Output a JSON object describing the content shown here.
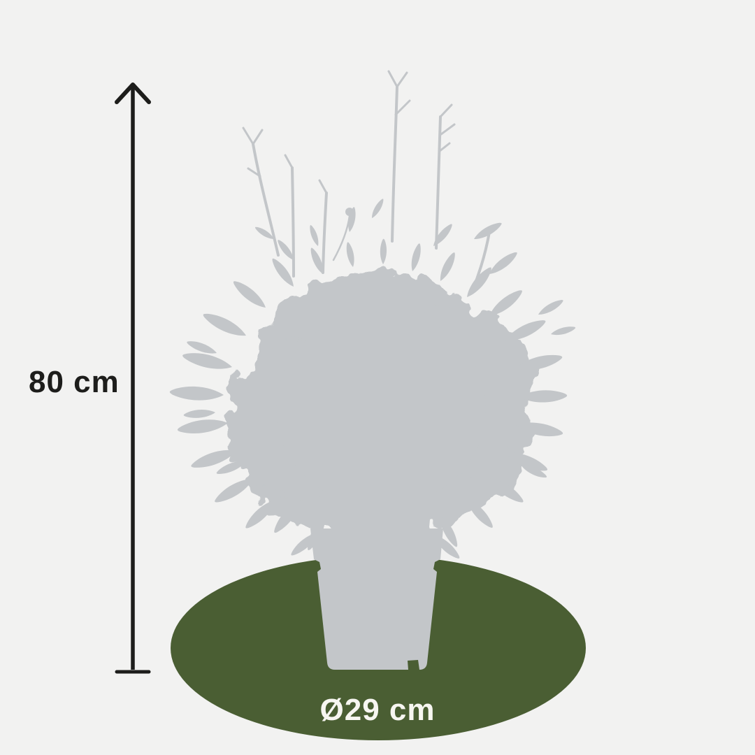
{
  "figure": {
    "description": "product dimension illustration of a potted bamboo plant silhouette",
    "height_label": "80 cm",
    "diameter_label": ")29 cm",
    "diameter_label_text": "Ø29 cm"
  },
  "labels": {
    "height": "80 cm",
    "diameter": "Ø29 cm"
  },
  "icons": {
    "height_arrow": "up-arrow-with-base-bar",
    "diameter_symbol": "Ø (slashed circle, diameter sign)"
  },
  "colors": {
    "background": "#f2f2f1",
    "silhouette": "#c3c6c9",
    "disc_green": "#4a5e33",
    "measure_black": "#1d1d1b",
    "diameter_text": "#f7f6f1"
  }
}
